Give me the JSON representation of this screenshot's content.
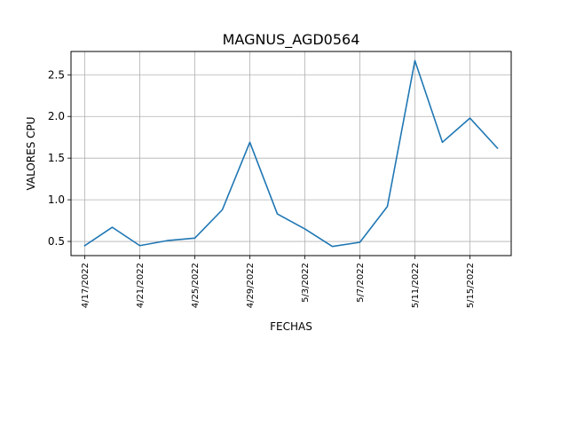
{
  "chart_data": {
    "type": "line",
    "title": "MAGNUS_AGD0564",
    "xlabel": "FECHAS",
    "ylabel": "VALORES CPU",
    "x": [
      "4/17/2022",
      "4/19/2022",
      "4/21/2022",
      "4/23/2022",
      "4/25/2022",
      "4/27/2022",
      "4/29/2022",
      "5/1/2022",
      "5/3/2022",
      "5/5/2022",
      "5/7/2022",
      "5/9/2022",
      "5/11/2022",
      "5/13/2022",
      "5/15/2022",
      "5/17/2022"
    ],
    "series": [
      {
        "values": [
          0.45,
          0.67,
          0.45,
          0.51,
          0.54,
          0.88,
          1.69,
          0.83,
          0.65,
          0.44,
          0.49,
          0.92,
          2.67,
          1.69,
          1.98,
          1.62
        ]
      }
    ],
    "xticks": [
      "4/17/2022",
      "4/21/2022",
      "4/25/2022",
      "4/29/2022",
      "5/3/2022",
      "5/7/2022",
      "5/11/2022",
      "5/15/2022"
    ],
    "yticks": [
      0.5,
      1.0,
      1.5,
      2.0,
      2.5
    ],
    "ytick_labels": [
      "0.5",
      "1.0",
      "1.5",
      "2.0",
      "2.5"
    ],
    "ylim": [
      0.33,
      2.78
    ],
    "xlim": [
      "4/16/2022",
      "5/18/2022"
    ],
    "grid": true,
    "line_color": "#1f77b4",
    "grid_color": "#b0b0b0"
  }
}
